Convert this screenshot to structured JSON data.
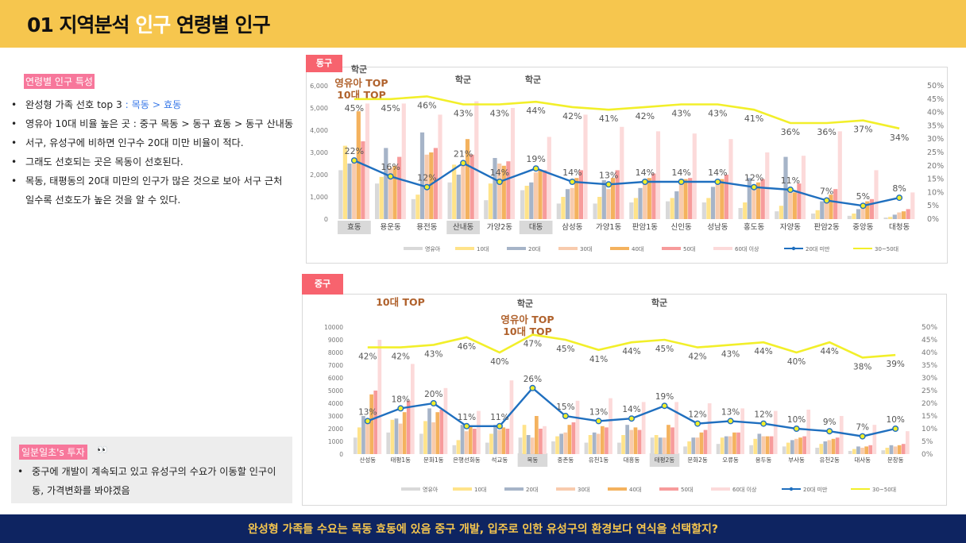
{
  "header": {
    "title_pre": "01 지역분석 ",
    "title_hl": "인구",
    "title_post": " 연령별 인구"
  },
  "left": {
    "label": "연령별 인구 특성",
    "bullets": [
      {
        "pre": "완성형 가족 선호 top 3 ",
        "hl": ": 목동 > 효동",
        "post": ""
      },
      {
        "pre": "영유아 10대 비율 높은 곳 : 중구 목동 > 동구 효동 > 동구 산내동",
        "hl": "",
        "post": ""
      },
      {
        "pre": "서구, 유성구에 비하면 인구수 20대 미만 비율이 적다.",
        "hl": "",
        "post": ""
      },
      {
        "pre": "그래도 선호되는 곳은 목동이 선호된다.",
        "hl": "",
        "post": ""
      },
      {
        "pre": "목동, 태평동의 20대 미만의 인구가 많은 것으로 보아 서구 근처 일수록 선호도가 높은 것을 알 수 있다.",
        "hl": "",
        "post": ""
      }
    ],
    "invest_label": "일분일초's 투자",
    "invest_icon": "eyes-icon",
    "invest_bullet": "중구에 개발이 계속되고 있고 유성구의 수요가 이동할 인구이동, 가격변화를 봐야겠음"
  },
  "footer": {
    "text": "완성형 가족들 수요는 목동 효동에 있음 중구 개발, 입주로 인한 유성구의 환경보다 연식을 선택할지?"
  },
  "colors": {
    "영유아": "#D9D9D9",
    "10대": "#FFE38A",
    "20대": "#A6B4C8",
    "30대": "#F8CBAD",
    "40대": "#F4B25E",
    "50대": "#F79B9B",
    "60대 이상": "#FCDADA",
    "line_under20": "#1F6FBF",
    "line_3050": "#F2EF2A"
  },
  "chart_data": [
    {
      "tag": "동구",
      "type": "bar",
      "annotations": [
        "학군",
        "영유아 TOP",
        "10대 TOP",
        "학군",
        "학군"
      ],
      "categories": [
        "효동",
        "용운동",
        "용전동",
        "산내동",
        "가양2동",
        "대동",
        "삼성동",
        "가양1동",
        "판암1동",
        "신인동",
        "성남동",
        "홍도동",
        "자양동",
        "판암2동",
        "중앙동",
        "대청동"
      ],
      "highlighted": [
        "효동",
        "산내동",
        "대동"
      ],
      "ylim": [
        0,
        6000
      ],
      "yticks": [
        "0",
        "1,000",
        "2,000",
        "3,000",
        "4,000",
        "5,000",
        "6,000"
      ],
      "y2lim": [
        0,
        50
      ],
      "y2ticks": [
        "0%",
        "5%",
        "10%",
        "15%",
        "20%",
        "25%",
        "30%",
        "35%",
        "40%",
        "45%",
        "50%"
      ],
      "legend": [
        "영유아",
        "10대",
        "20대",
        "30대",
        "40대",
        "50대",
        "60대 이상",
        "20대 미만",
        "30~50대"
      ],
      "series": [
        {
          "name": "영유아",
          "values": [
            2200,
            1600,
            900,
            1650,
            850,
            1300,
            700,
            700,
            750,
            800,
            750,
            500,
            350,
            250,
            150,
            70
          ]
        },
        {
          "name": "10대",
          "values": [
            3300,
            1900,
            1100,
            2450,
            1600,
            1500,
            1000,
            1000,
            950,
            950,
            950,
            750,
            600,
            400,
            250,
            100
          ]
        },
        {
          "name": "20대",
          "values": [
            2500,
            3200,
            3900,
            2000,
            2750,
            1650,
            1350,
            1750,
            1400,
            1250,
            1450,
            1850,
            2800,
            800,
            450,
            200
          ]
        },
        {
          "name": "30대",
          "values": [
            2700,
            2300,
            2900,
            2600,
            2500,
            2100,
            1400,
            1350,
            1600,
            1600,
            1550,
            1450,
            1300,
            900,
            650,
            300
          ]
        },
        {
          "name": "40대",
          "values": [
            4850,
            2400,
            3000,
            3600,
            2400,
            2200,
            1850,
            1850,
            1850,
            1800,
            1800,
            1650,
            1200,
            1100,
            800,
            350
          ]
        },
        {
          "name": "50대",
          "values": [
            3500,
            2800,
            3200,
            2900,
            2600,
            2200,
            2200,
            2200,
            2050,
            1850,
            2000,
            1800,
            1600,
            1350,
            900,
            450
          ]
        },
        {
          "name": "60대 이상",
          "values": [
            5200,
            5200,
            4700,
            5300,
            5000,
            3700,
            4700,
            4150,
            3950,
            3850,
            3600,
            3000,
            2850,
            3950,
            2200,
            1200
          ]
        },
        {
          "name": "20대 미만",
          "axis": "secondary",
          "values": [
            22,
            16,
            12,
            21,
            14,
            19,
            14,
            13,
            14,
            14,
            14,
            12,
            11,
            7,
            5,
            8
          ]
        },
        {
          "name": "30~50대",
          "axis": "secondary",
          "values": [
            45,
            45,
            46,
            43,
            43,
            44,
            42,
            41,
            42,
            43,
            43,
            41,
            36,
            36,
            37,
            34
          ]
        }
      ]
    },
    {
      "tag": "중구",
      "type": "bar",
      "annotations": [
        "10대 TOP",
        "학군",
        "영유아 TOP",
        "10대 TOP",
        "학군"
      ],
      "categories": [
        "산성동",
        "태평1동",
        "문화1동",
        "은행선화동",
        "석교동",
        "목동",
        "중촌동",
        "유천1동",
        "대흥동",
        "태평2동",
        "문화2동",
        "오류동",
        "용두동",
        "부사동",
        "유천2동",
        "대사동",
        "문창동"
      ],
      "highlighted": [
        "목동",
        "태평2동"
      ],
      "ylim": [
        0,
        10000
      ],
      "yticks": [
        "0",
        "1000",
        "2000",
        "3000",
        "4000",
        "5000",
        "6000",
        "7000",
        "8000",
        "9000",
        "10000"
      ],
      "y2lim": [
        0,
        50
      ],
      "y2ticks": [
        "0%",
        "5%",
        "10%",
        "15%",
        "20%",
        "25%",
        "30%",
        "35%",
        "40%",
        "45%",
        "50%"
      ],
      "legend": [
        "영유아",
        "10대",
        "20대",
        "30대",
        "40대",
        "50대",
        "60대 이상",
        "20대 미만",
        "30~50대"
      ],
      "series": [
        {
          "name": "영유아",
          "values": [
            1300,
            1700,
            1600,
            700,
            900,
            1300,
            1000,
            900,
            900,
            1300,
            600,
            800,
            700,
            600,
            500,
            250,
            300
          ]
        },
        {
          "name": "10대",
          "values": [
            2100,
            2700,
            2600,
            1100,
            1600,
            2300,
            1400,
            1500,
            1500,
            1500,
            1000,
            1300,
            1200,
            900,
            800,
            400,
            500
          ]
        },
        {
          "name": "20대",
          "values": [
            3000,
            2800,
            3600,
            2300,
            2300,
            1500,
            1600,
            1700,
            2300,
            1300,
            1300,
            1400,
            1600,
            1100,
            1000,
            600,
            700
          ]
        },
        {
          "name": "30대",
          "values": [
            2500,
            2400,
            2500,
            1800,
            1900,
            1300,
            1700,
            1600,
            1900,
            1300,
            1300,
            1400,
            1400,
            1200,
            1100,
            500,
            600
          ]
        },
        {
          "name": "40대",
          "values": [
            4700,
            3300,
            3300,
            2200,
            2100,
            3000,
            2300,
            2200,
            2100,
            2300,
            1700,
            1700,
            1400,
            1300,
            1200,
            600,
            700
          ]
        },
        {
          "name": "50대",
          "values": [
            5000,
            4200,
            3500,
            2000,
            2000,
            2000,
            2500,
            2100,
            1900,
            2100,
            1900,
            1700,
            1400,
            1400,
            1300,
            700,
            800
          ]
        },
        {
          "name": "60대 이상",
          "values": [
            9000,
            7100,
            5200,
            3400,
            5800,
            2200,
            4200,
            4400,
            4100,
            4100,
            4000,
            3600,
            3400,
            3500,
            3000,
            2300,
            1800
          ]
        },
        {
          "name": "20대 미만",
          "axis": "secondary",
          "values": [
            13,
            18,
            20,
            11,
            11,
            26,
            15,
            13,
            14,
            19,
            12,
            13,
            12,
            10,
            9,
            7,
            10
          ]
        },
        {
          "name": "30~50대",
          "axis": "secondary",
          "values": [
            42,
            42,
            43,
            46,
            40,
            47,
            45,
            41,
            44,
            45,
            42,
            43,
            44,
            40,
            44,
            38,
            39
          ]
        }
      ]
    }
  ]
}
